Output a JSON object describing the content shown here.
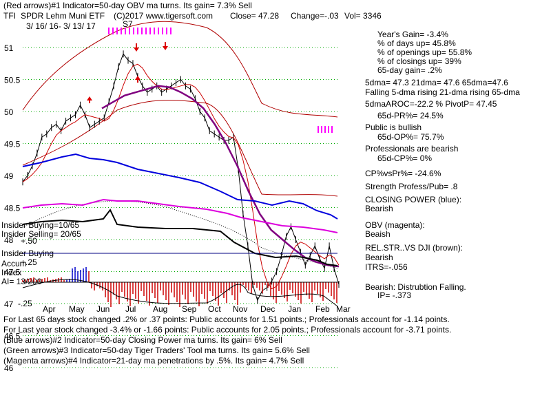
{
  "header": {
    "line1": "(Red arrows)#1 Indicator=50-day OBV ma turns. Its gain= 7.3% Sell",
    "symbol": "TFI",
    "name": "SPDR Lehm Muni ETF",
    "copyright": "(C)2017 www.tigersoft.com",
    "close": "Close=   47.28",
    "change": "Change=-.03",
    "vol": "Vol= 3346",
    "date_range": "3/ 16/ 16- 3/ 13/ 17",
    "s7": "S7"
  },
  "stats": [
    "Year's Gain= -3.4%",
    "% of days up= 45.8%",
    "% of openings up= 55.8%",
    "% of closings up= 39%",
    "65-day gain= .2%",
    "5dma= 47.3 21dma= 47.6 65dma=47.6",
    "Falling 5-dma rising 21-dma rising 65-dma",
    "5dmaAROC=-22.2 %  PivotP= 47.45",
    "65d-PR%= 24.5%",
    "Public is bullish",
    "65d-OP%= 75.7%",
    "Professionals are bearish",
    "65d-CP%= 0%",
    "CP%vsPr%= -24.6%",
    "Strength Profess/Pub= .8",
    "CLOSING POWER (blue):",
    "Bearish",
    "OBV (magenta):",
    "Beaish",
    "REL.STR..VS DJI (brown):",
    "Bearish",
    "ITRS=-.056",
    "Bearish: Distrubtion Falling.",
    "IP= -.373"
  ],
  "left_labels": {
    "insider_buying": "Insider Buying=10/65",
    "insider_selling": "Insider Selling= 20/65",
    "plus50": "+.50",
    "insider_buying2": "Insider Buying",
    "accum": "Accum",
    "plus25": "+.25",
    "index": "Index",
    "ai": "AI= 13/200",
    "minus25": "-.25"
  },
  "footer": [
    "For Last 65 days stock changed  .2% or .37 points:  Public accounts for  1.51 points.;  Professionals account for -1.14 points.",
    "For Last year stock changed -3.4% or -1.66 points:  Public accounts for  2.05 points.;  Professionals account for -3.71 points.",
    "(Blue arrows)#2 Indicator=50-day Closing Power ma turns. Its gain= 6% Sell",
    "(Green arrows)#3 Indicator=50-day Tiger Traders' Tool ma turns. Its gain= 5.6% Sell",
    "(Magenta arrows)#4 Indicator=21-day ma penetrations by .5%. Its gain= 4.7% Sell"
  ],
  "colors": {
    "price": "#000000",
    "closing_power": "#0000dd",
    "obv": "#dd00dd",
    "rel_strength": "#000000",
    "ma65": "#800080",
    "ma21": "#cc0000",
    "bands": "#b00000",
    "grid": "#00aa00",
    "accum_red": "#cc0000",
    "accum_blue": "#0000cc",
    "arrow": "#dd0000",
    "magenta_arrow": "#ff00ff"
  },
  "chart_data": {
    "type": "line",
    "title": "TFI  SPDR Lehm Muni ETF",
    "y_ticks": [
      "51",
      "50.5",
      "50",
      "49.5",
      "49",
      "48.5",
      "48",
      "47.5",
      "47",
      "46.5",
      "46"
    ],
    "ylim": [
      45.8,
      51.3
    ],
    "x_ticks": [
      "Apr",
      "May",
      "Jun",
      "Jul",
      "Aug",
      "Sep",
      "Oct",
      "Nov",
      "Dec",
      "Jan",
      "Feb",
      "Mar"
    ],
    "series": [
      {
        "name": "price",
        "values": [
          48.9,
          49.0,
          49.15,
          49.35,
          49.6,
          49.65,
          49.75,
          49.8,
          49.7,
          49.85,
          49.9,
          49.95,
          50.1,
          49.95,
          49.75,
          49.8,
          49.85,
          49.9,
          50.15,
          50.4,
          50.7,
          50.9,
          50.8,
          50.75,
          50.55,
          50.4,
          50.3,
          50.35,
          50.4,
          50.3,
          50.35,
          50.4,
          50.45,
          50.5,
          50.4,
          50.35,
          50.2,
          50.0,
          49.9,
          49.7,
          49.65,
          49.6,
          49.55,
          49.55,
          49.6,
          49.1,
          48.4,
          47.9,
          47.3,
          47.05,
          47.2,
          47.25,
          47.35,
          47.5,
          47.75,
          48.05,
          48.2,
          48.0,
          47.8,
          47.6,
          47.75,
          47.9,
          47.7,
          47.55,
          47.9,
          47.55,
          47.3
        ]
      },
      {
        "name": "65-dma",
        "values": [
          50.05,
          50.15,
          50.25,
          50.3,
          50.35,
          50.4,
          50.38,
          50.3,
          50.2,
          50.05,
          49.8,
          49.5,
          49.15,
          48.75,
          48.4,
          48.15,
          48.0,
          47.85,
          47.72,
          47.65,
          47.6,
          47.58
        ]
      }
    ]
  }
}
